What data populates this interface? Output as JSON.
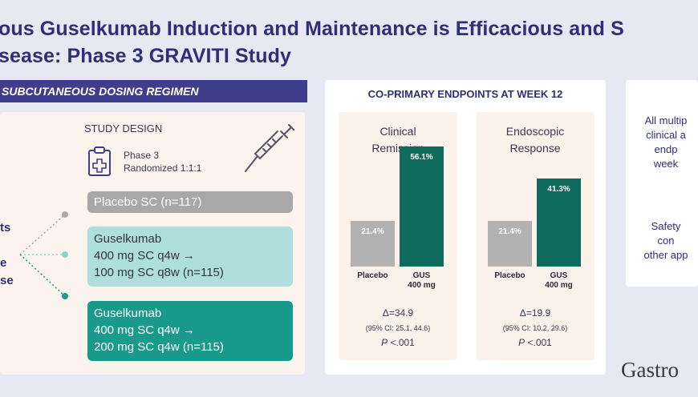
{
  "title": {
    "line1": "ous Guselkumab Induction and Maintenance is Efficacious and S",
    "line2": "sease: Phase 3 GRAVITI Study"
  },
  "banner": "SUBCUTANEOUS DOSING REGIMEN",
  "left_fragments": [
    "ts",
    "e",
    "se"
  ],
  "study_design": {
    "label": "STUDY DESIGN",
    "phase": "Phase 3",
    "randomization": "Randomized 1:1:1"
  },
  "arms": [
    {
      "lines": [
        "Placebo SC (n=117)"
      ]
    },
    {
      "lines": [
        "Guselkumab",
        "400 mg SC q4w →",
        "100 mg SC q8w (n=115)"
      ]
    },
    {
      "lines": [
        "Guselkumab",
        "400 mg SC q4w →",
        "200 mg SC q4w (n=115)"
      ]
    }
  ],
  "coprimary_header": "CO-PRIMARY ENDPOINTS AT WEEK 12",
  "colors": {
    "placebo": "#b2b2b2",
    "gus": "#0f6b5e",
    "navy": "#2f2f78",
    "teal_light": "#aedfdc",
    "teal_dark": "#1a9a8b"
  },
  "chart_data": [
    {
      "type": "bar",
      "title": "Clinical Remission",
      "categories": [
        "Placebo",
        "GUS 400 mg"
      ],
      "values": [
        21.4,
        56.1
      ],
      "value_labels": [
        "21.4%",
        "56.1%"
      ],
      "ylim": [
        0,
        60
      ],
      "delta": "Δ=34.9",
      "ci": "(95% CI: 25.1, 44.6)",
      "p_label": "P",
      "p_value": "<.001"
    },
    {
      "type": "bar",
      "title": "Endoscopic Response",
      "categories": [
        "Placebo",
        "GUS 400 mg"
      ],
      "values": [
        21.4,
        41.3
      ],
      "value_labels": [
        "21.4%",
        "41.3%"
      ],
      "ylim": [
        0,
        60
      ],
      "delta": "Δ=19.9",
      "ci": "(95% CI: 10.2, 29.6)",
      "p_label": "P",
      "p_value": "<.001"
    }
  ],
  "right_panel": {
    "text1": [
      "All multip",
      "clinical a",
      "endp",
      "week"
    ],
    "text2": [
      "Safety",
      "con",
      "other app"
    ]
  },
  "logo": "Gastro"
}
